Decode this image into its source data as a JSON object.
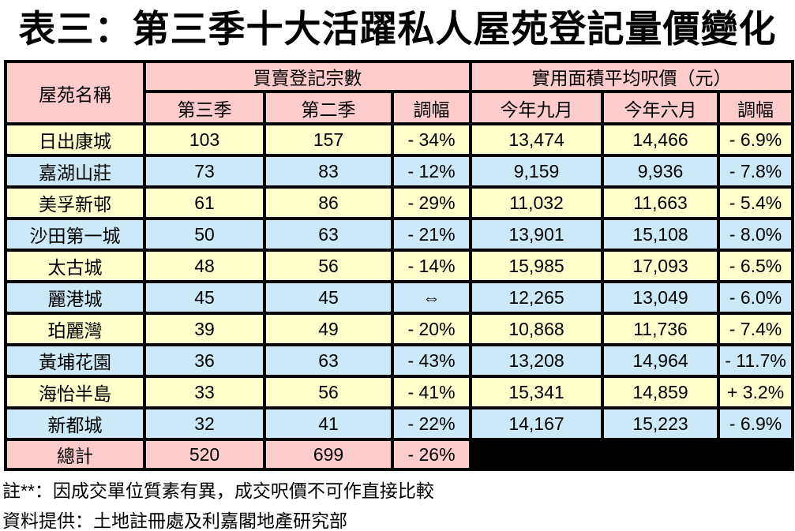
{
  "page_title": "表三：第三季十大活躍私人屋苑登記量價變化",
  "table": {
    "header": {
      "estate_col": "屋苑名稱",
      "registrations_group": "買賣登記宗數",
      "price_group": "實用面積平均呎價（元）",
      "sub_headers": [
        "第三季",
        "第二季",
        "調幅",
        "今年九月",
        "今年六月",
        "調幅"
      ]
    },
    "rows": [
      {
        "name": "日出康城",
        "q3_count": "103",
        "q2_count": "157",
        "count_change": "- 34%",
        "sep_price": "13,474",
        "jun_price": "14,466",
        "price_change": "- 6.9%"
      },
      {
        "name": "嘉湖山莊",
        "q3_count": "73",
        "q2_count": "83",
        "count_change": "- 12%",
        "sep_price": "9,159",
        "jun_price": "9,936",
        "price_change": "- 7.8%"
      },
      {
        "name": "美孚新邨",
        "q3_count": "61",
        "q2_count": "86",
        "count_change": "- 29%",
        "sep_price": "11,032",
        "jun_price": "11,663",
        "price_change": "- 5.4%"
      },
      {
        "name": "沙田第一城",
        "q3_count": "50",
        "q2_count": "63",
        "count_change": "- 21%",
        "sep_price": "13,901",
        "jun_price": "15,108",
        "price_change": "- 8.0%"
      },
      {
        "name": "太古城",
        "q3_count": "48",
        "q2_count": "56",
        "count_change": "- 14%",
        "sep_price": "15,985",
        "jun_price": "17,093",
        "price_change": "- 6.5%"
      },
      {
        "name": "麗港城",
        "q3_count": "45",
        "q2_count": "45",
        "count_change": "⇔",
        "sep_price": "12,265",
        "jun_price": "13,049",
        "price_change": "- 6.0%"
      },
      {
        "name": "珀麗灣",
        "q3_count": "39",
        "q2_count": "49",
        "count_change": "- 20%",
        "sep_price": "10,868",
        "jun_price": "11,736",
        "price_change": "- 7.4%"
      },
      {
        "name": "黃埔花園",
        "q3_count": "36",
        "q2_count": "63",
        "count_change": "- 43%",
        "sep_price": "13,208",
        "jun_price": "14,964",
        "price_change": "- 11.7%"
      },
      {
        "name": "海怡半島",
        "q3_count": "33",
        "q2_count": "56",
        "count_change": "- 41%",
        "sep_price": "15,341",
        "jun_price": "14,859",
        "price_change": "+ 3.2%"
      },
      {
        "name": "新都城",
        "q3_count": "32",
        "q2_count": "41",
        "count_change": "- 22%",
        "sep_price": "14,167",
        "jun_price": "15,223",
        "price_change": "- 6.9%"
      }
    ],
    "total_row": {
      "name": "總計",
      "q3_count": "520",
      "q2_count": "699",
      "count_change": "- 26%"
    }
  },
  "notes": {
    "note1": "註**：因成交單位質素有異，成交呎價不可作直接比較",
    "note2": "資料提供：土地註冊處及利嘉閣地產研究部"
  },
  "colors": {
    "header_bg": "#FFCCCC",
    "row_yellow": "#FFFFCC",
    "row_blue": "#CCE9FA",
    "total_bg": "#FFCCCC",
    "blackout": "#000000",
    "border": "#000000"
  }
}
